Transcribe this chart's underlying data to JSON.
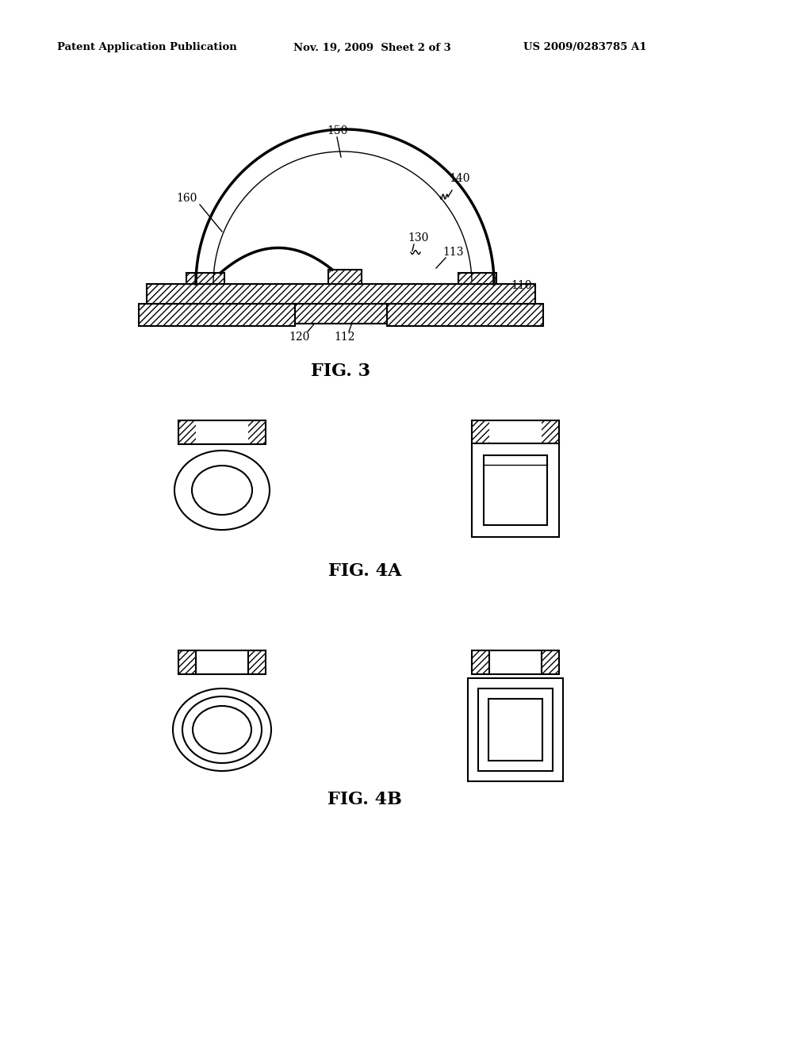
{
  "bg_color": "#ffffff",
  "header_left": "Patent Application Publication",
  "header_mid": "Nov. 19, 2009  Sheet 2 of 3",
  "header_right": "US 2009/0283785 A1",
  "fig3_label": "FIG. 3",
  "fig4a_label": "FIG. 4A",
  "fig4b_label": "FIG. 4B",
  "line_color": "#000000"
}
